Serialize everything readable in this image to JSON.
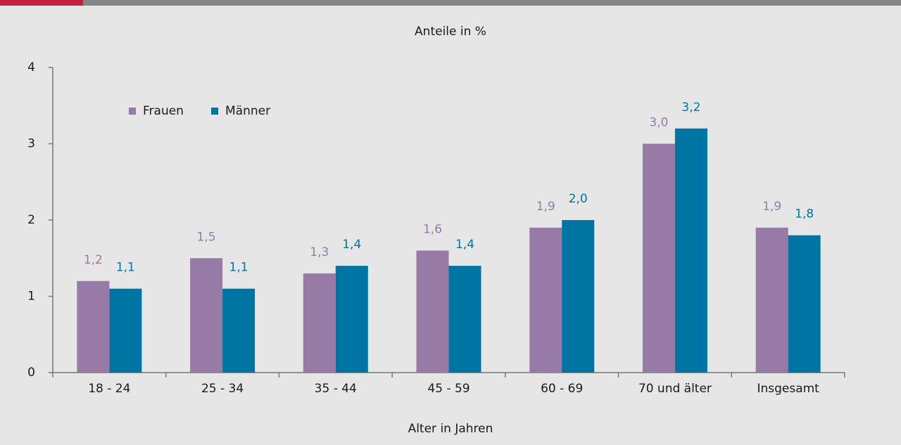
{
  "chart_data": {
    "type": "bar",
    "title": "Anteile in %",
    "x_label": "Alter in Jahren",
    "categories": [
      "18 - 24",
      "25 - 34",
      "35 - 44",
      "45 - 59",
      "60 - 69",
      "70 und älter",
      "Insgesamt"
    ],
    "series": [
      {
        "name": "Frauen",
        "color": "#977ba6",
        "values": [
          1.2,
          1.5,
          1.3,
          1.6,
          1.9,
          3.0,
          1.9
        ],
        "value_labels": [
          "1,2",
          "1,5",
          "1,3",
          "1,6",
          "1,9",
          "3,0",
          "1,9"
        ]
      },
      {
        "name": "Männer",
        "color": "#0075a3",
        "values": [
          1.1,
          1.1,
          1.4,
          1.4,
          2.0,
          3.2,
          1.8
        ],
        "value_labels": [
          "1,1",
          "1,1",
          "1,4",
          "1,4",
          "2,0",
          "3,2",
          "1,8"
        ]
      }
    ],
    "ylim": [
      0,
      4
    ],
    "yticks": [
      0,
      1,
      2,
      3,
      4
    ],
    "grid": false,
    "legend": "top-left"
  }
}
